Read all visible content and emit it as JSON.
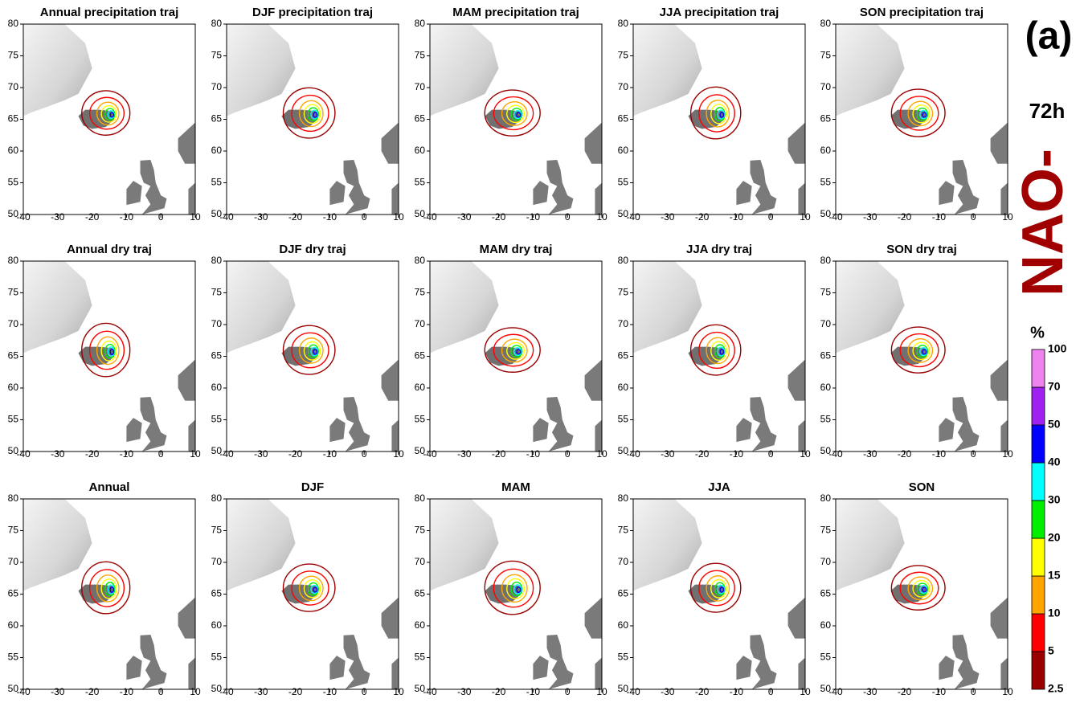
{
  "label": "(a)",
  "lead_time": "72h",
  "phase": "NAO-",
  "panels": [
    {
      "title": "Annual precipitation traj"
    },
    {
      "title": "DJF precipitation traj"
    },
    {
      "title": "MAM precipitation traj"
    },
    {
      "title": "JJA precipitation traj"
    },
    {
      "title": "SON precipitation traj"
    },
    {
      "title": "Annual dry traj"
    },
    {
      "title": "DJF dry traj"
    },
    {
      "title": "MAM dry traj"
    },
    {
      "title": "JJA dry traj"
    },
    {
      "title": "SON dry traj"
    },
    {
      "title": "Annual"
    },
    {
      "title": "DJF"
    },
    {
      "title": "MAM"
    },
    {
      "title": "JJA"
    },
    {
      "title": "SON"
    }
  ],
  "xlim": [
    -40,
    10
  ],
  "ylim": [
    50,
    80
  ],
  "xticks": [
    -40,
    -30,
    -20,
    -10,
    0,
    10
  ],
  "yticks": [
    50,
    55,
    60,
    65,
    70,
    75,
    80
  ],
  "colorbar": {
    "unit": "%",
    "levels": [
      2.5,
      5,
      10,
      15,
      20,
      30,
      40,
      50,
      70,
      100
    ],
    "colors": [
      "#990000",
      "#ff0000",
      "#ffa500",
      "#ffff00",
      "#00ee00",
      "#00ffff",
      "#0000ff",
      "#a020f0",
      "#ee82ee"
    ]
  }
}
